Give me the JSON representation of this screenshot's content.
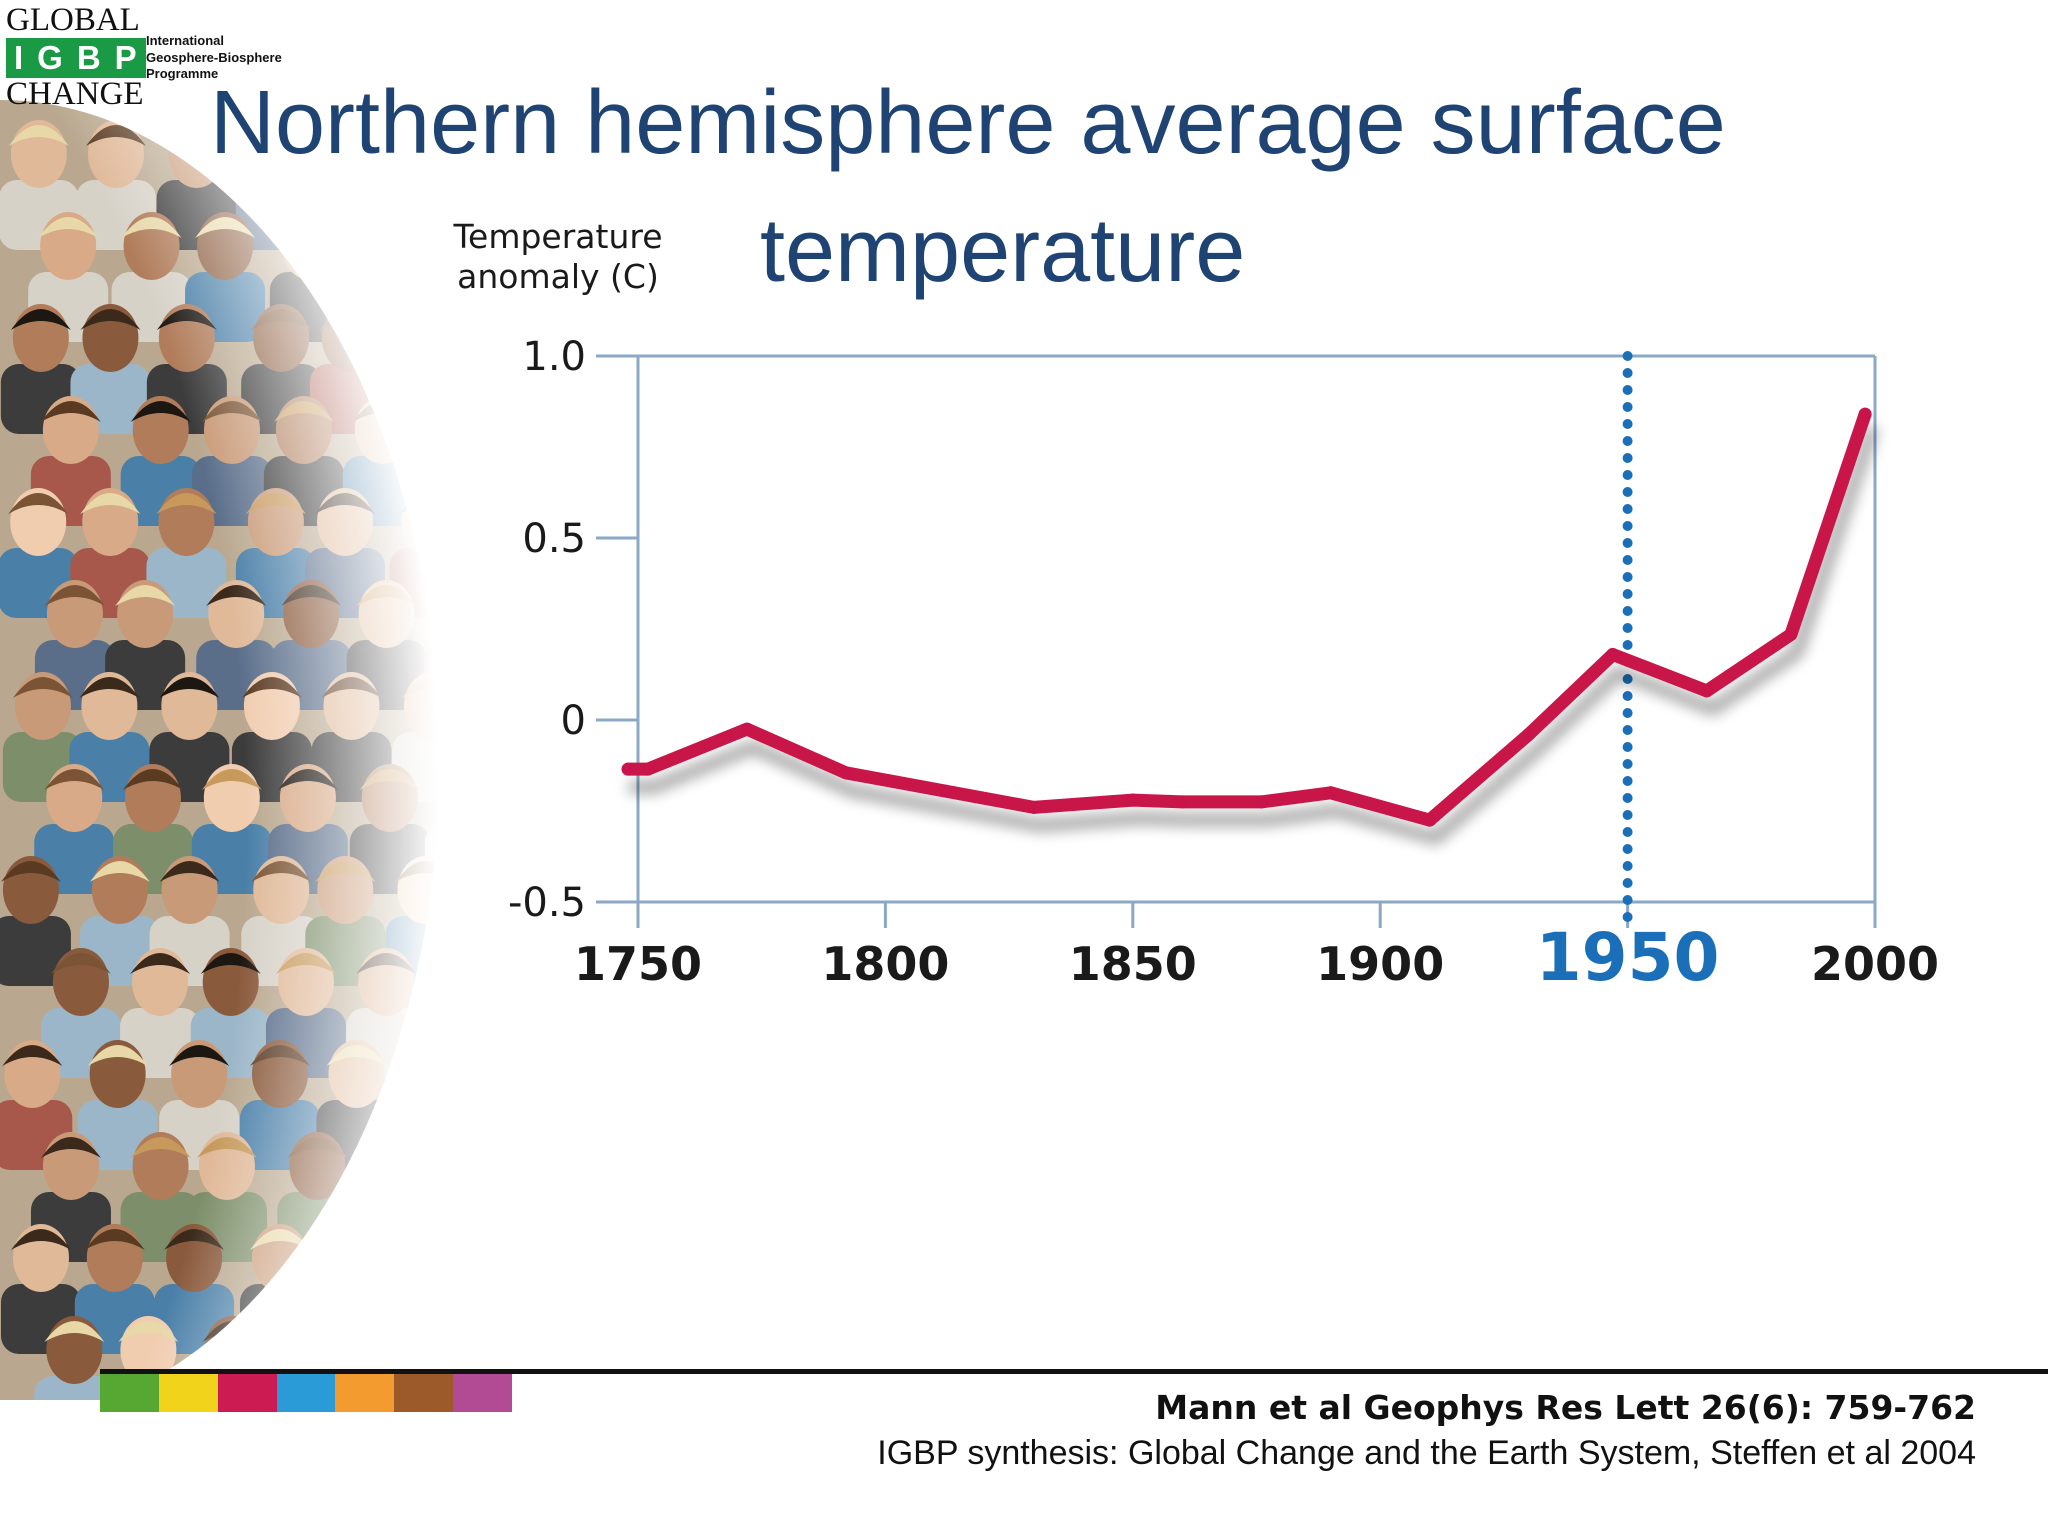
{
  "logo": {
    "word_top": "GLOBAL",
    "acronym": "IGBP",
    "word_bottom": "CHANGE",
    "programme_lines": [
      "International",
      "Geosphere-Biosphere",
      "Programme"
    ],
    "brand_color": "#1b9a46"
  },
  "slide": {
    "title_line1": "Northern hemisphere average surface",
    "title_line2": "temperature",
    "title_color": "#1f4373"
  },
  "chart_data": {
    "type": "line",
    "title": "",
    "ylabel_lines": [
      "Temperature",
      "anomaly (C)"
    ],
    "xlabel": "",
    "x_ticks": [
      1750,
      1800,
      1850,
      1900,
      1950,
      2000
    ],
    "y_ticks": [
      "1.0",
      "0.5",
      "0",
      "-0.5"
    ],
    "y_tick_values": [
      1.0,
      0.5,
      0,
      -0.5
    ],
    "xlim": [
      1750,
      2000
    ],
    "ylim": [
      -0.5,
      1.0
    ],
    "series": [
      {
        "color": "#c8144a",
        "x": [
          1748,
          1752,
          1772,
          1792,
          1812,
          1830,
          1850,
          1860,
          1876,
          1890,
          1910,
          1930,
          1947,
          1966,
          1983,
          1998
        ],
        "y": [
          -0.135,
          -0.135,
          -0.025,
          -0.145,
          -0.195,
          -0.24,
          -0.22,
          -0.225,
          -0.225,
          -0.2,
          -0.275,
          -0.04,
          0.18,
          0.08,
          0.235,
          0.84
        ]
      }
    ],
    "highlight": {
      "x": 1950,
      "label": "1950",
      "style": "dotted",
      "color": "#1a6fb8"
    },
    "grid": false,
    "legend": "none"
  },
  "footer": {
    "citation_1": "Mann et al Geophys Res Lett 26(6): 759-762",
    "citation_2": "IGBP synthesis: Global Change and the Earth System, Steffen et al 2004",
    "strip_colors": [
      "#57a832",
      "#f2d31b",
      "#cc1b52",
      "#2b9bd8",
      "#f39b2e",
      "#9c5a2a",
      "#b24b93"
    ]
  }
}
